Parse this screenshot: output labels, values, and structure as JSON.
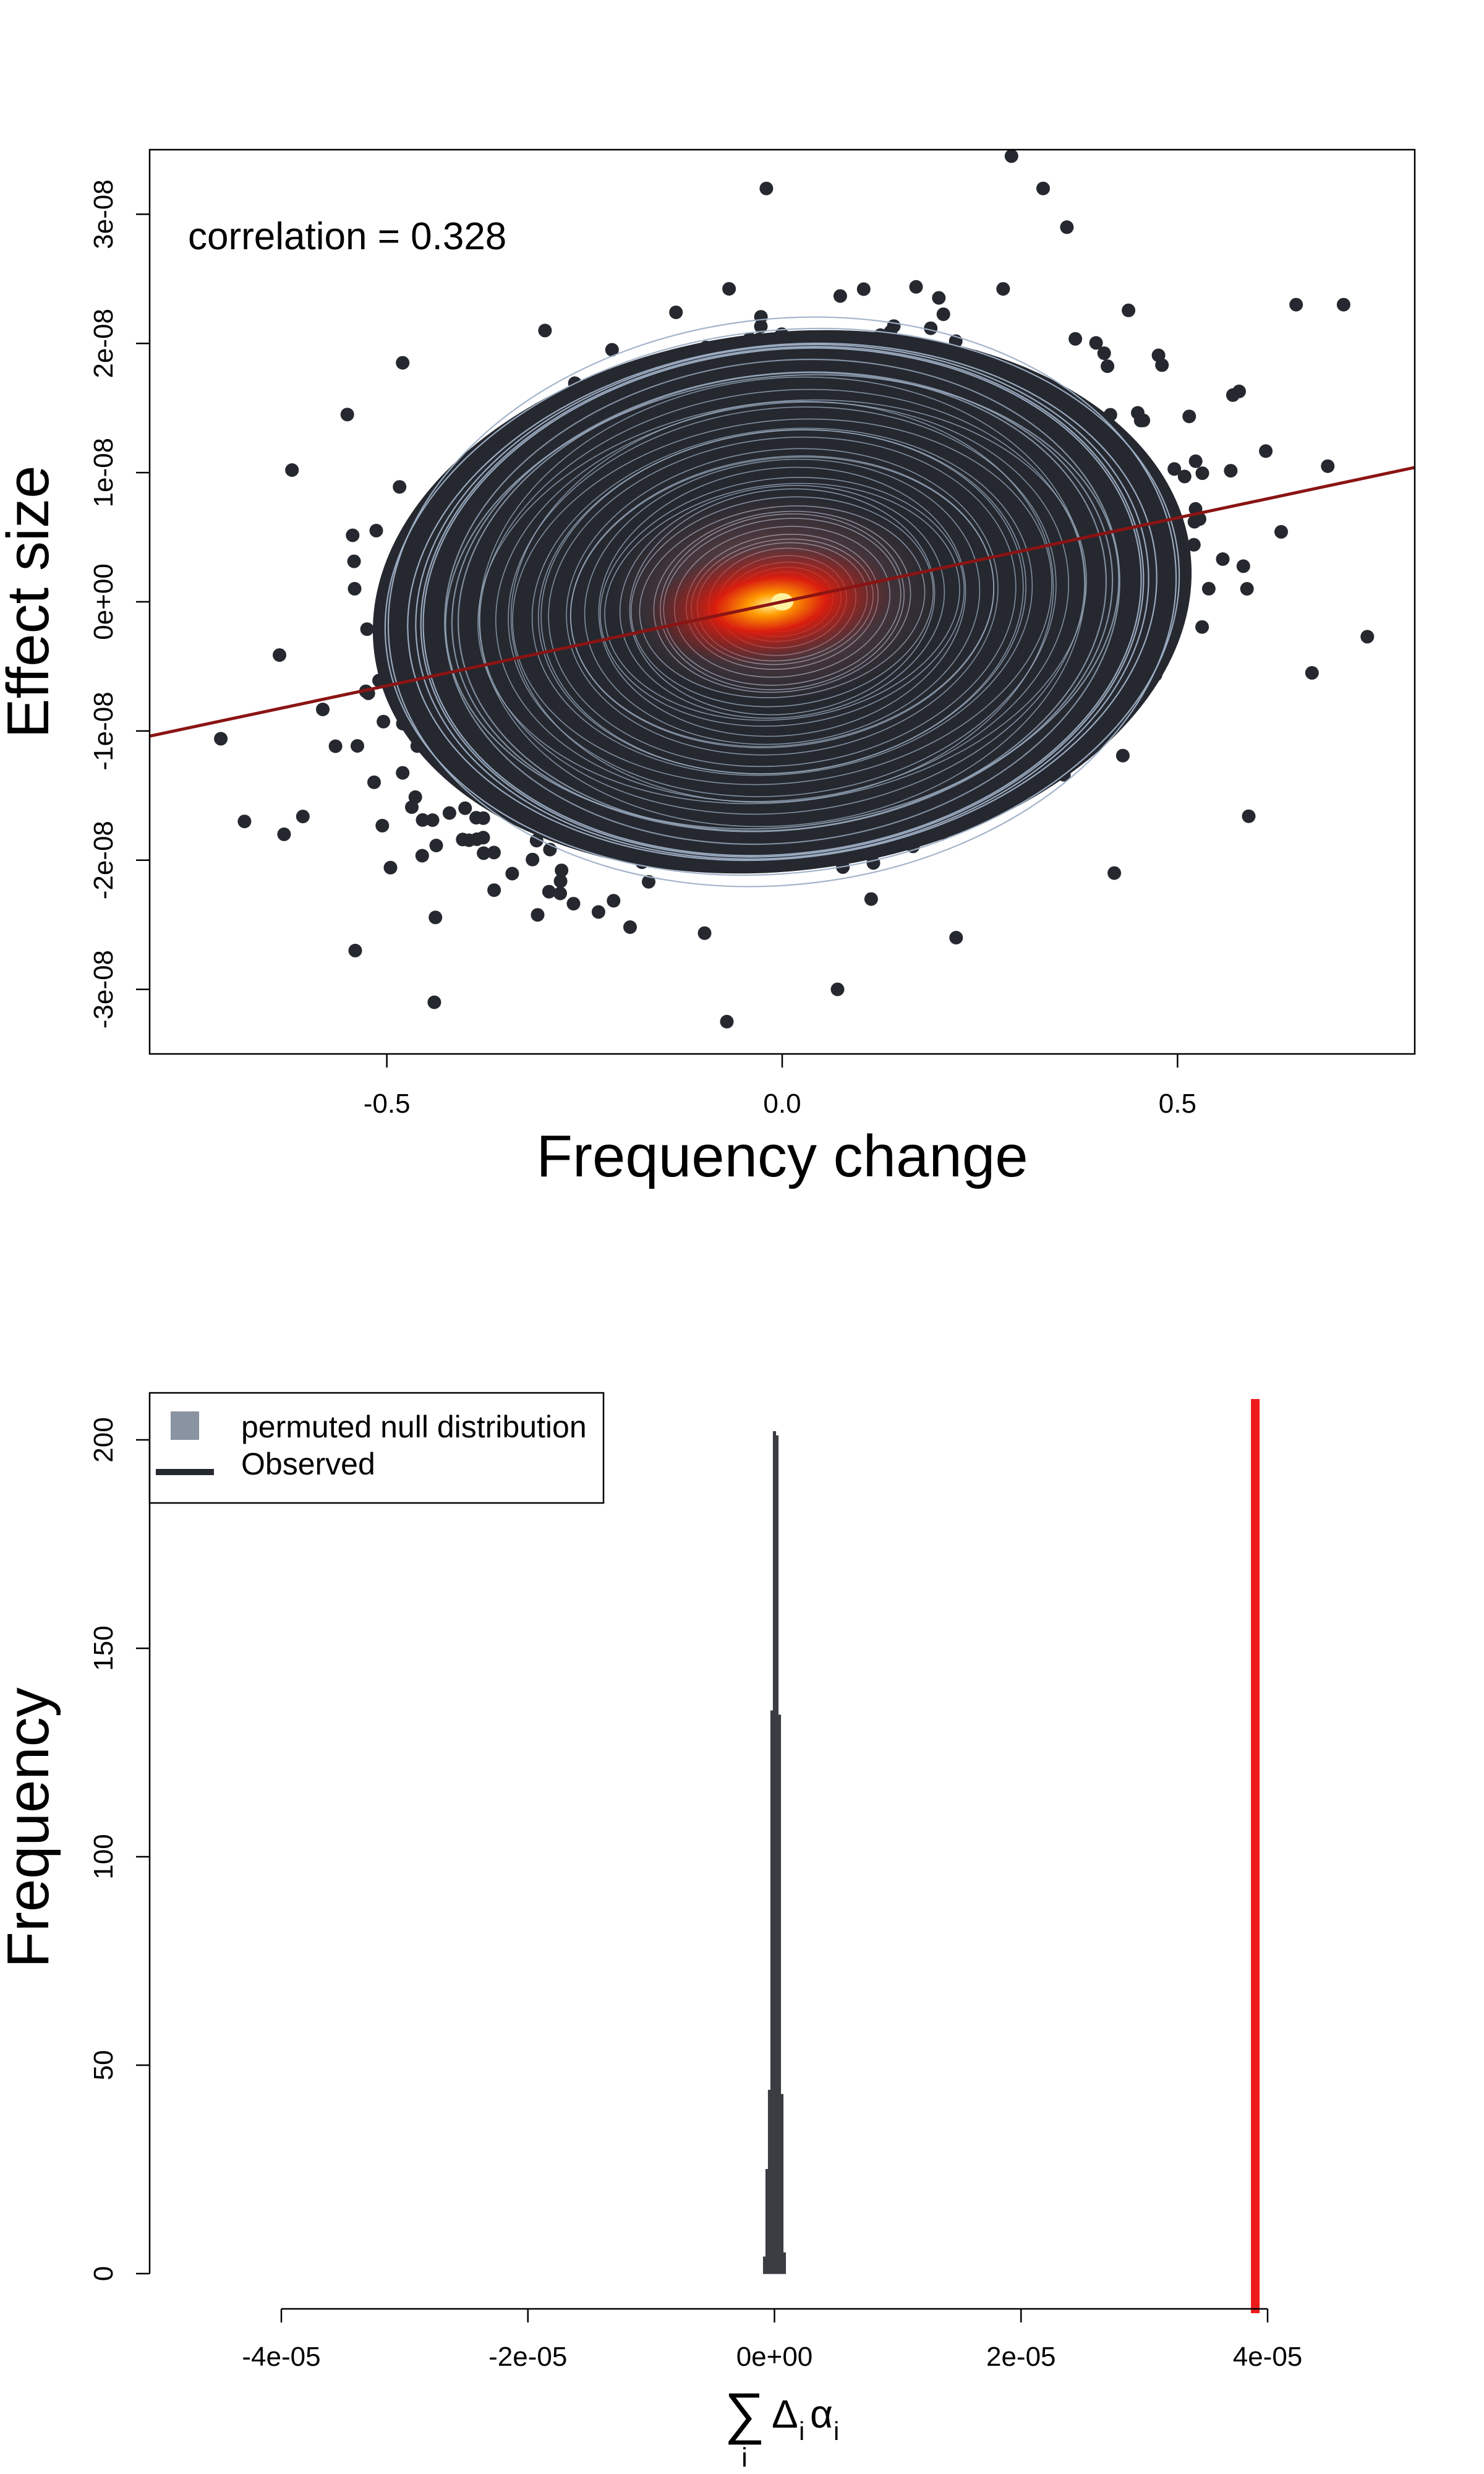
{
  "chart_data": [
    {
      "type": "scatter",
      "title": "",
      "xlabel": "Frequency change",
      "ylabel": "Effect size",
      "xlim": [
        -0.8,
        0.8
      ],
      "ylim": [
        -3.5e-08,
        3.5e-08
      ],
      "x_ticks": [
        {
          "value": -0.5,
          "label": "-0.5"
        },
        {
          "value": 0.0,
          "label": "0.0"
        },
        {
          "value": 0.5,
          "label": "0.5"
        }
      ],
      "y_ticks": [
        {
          "value": -3e-08,
          "label": "-3e-08"
        },
        {
          "value": -2e-08,
          "label": "-2e-08"
        },
        {
          "value": -1e-08,
          "label": "-1e-08"
        },
        {
          "value": 0,
          "label": "0e+00"
        },
        {
          "value": 1e-08,
          "label": "1e-08"
        },
        {
          "value": 2e-08,
          "label": "2e-08"
        },
        {
          "value": 3e-08,
          "label": "3e-08"
        }
      ],
      "annotation": "correlation = 0.328",
      "correlation": 0.328,
      "regression_line": {
        "slope": 1.3e-08,
        "intercept": 0
      },
      "point_spread": {
        "sd_x": 0.2,
        "sd_y": 8.5e-09,
        "rho": 0.328
      },
      "outlier_points": [
        [
          -0.71,
          -1.06e-08
        ],
        [
          -0.62,
          1.02e-08
        ],
        [
          -0.55,
          1.45e-08
        ],
        [
          0.74,
          -2.7e-09
        ],
        [
          0.71,
          2.3e-08
        ],
        [
          0.59,
          -1.66e-08
        ],
        [
          0.29,
          3.45e-08
        ],
        [
          -0.02,
          3.2e-08
        ],
        [
          0.33,
          3.2e-08
        ],
        [
          -0.07,
          -3.25e-08
        ],
        [
          -0.44,
          -3.1e-08
        ],
        [
          0.07,
          -3e-08
        ],
        [
          -0.54,
          -2.7e-08
        ],
        [
          0.22,
          -2.6e-08
        ],
        [
          0.42,
          -2.1e-08
        ],
        [
          0.65,
          2.3e-08
        ],
        [
          -0.48,
          1.85e-08
        ],
        [
          0.57,
          1.6e-08
        ],
        [
          -0.63,
          -1.8e-08
        ],
        [
          0.36,
          2.9e-08
        ],
        [
          -0.3,
          2.1e-08
        ],
        [
          0.69,
          1.05e-08
        ],
        [
          -0.68,
          -1.7e-08
        ],
        [
          0.67,
          -5.5e-09
        ]
      ],
      "colors": {
        "points": "#25282f",
        "contours": "#9fb0c6",
        "density_core": "#e01b0b",
        "density_peak": "#fff2a0",
        "fit_line": "#8b1414"
      }
    },
    {
      "type": "bar",
      "title": "",
      "xlabel": "∑ Δᵢαᵢ",
      "xlabel_parts": {
        "sum_symbol": "∑",
        "sum_index": "i",
        "delta": "Δ",
        "delta_index": "i",
        "alpha": "α",
        "alpha_index": "i"
      },
      "ylabel": "Frequency",
      "xlim": [
        -4e-05,
        4e-05
      ],
      "ylim": [
        0,
        210
      ],
      "x_ticks": [
        {
          "value": -4e-05,
          "label": "-4e-05"
        },
        {
          "value": -2e-05,
          "label": "-2e-05"
        },
        {
          "value": 0,
          "label": "0e+00"
        },
        {
          "value": 2e-05,
          "label": "2e-05"
        },
        {
          "value": 4e-05,
          "label": "4e-05"
        }
      ],
      "y_ticks": [
        {
          "value": 0,
          "label": "0"
        },
        {
          "value": 50,
          "label": "50"
        },
        {
          "value": 100,
          "label": "100"
        },
        {
          "value": 150,
          "label": "150"
        },
        {
          "value": 200,
          "label": "200"
        }
      ],
      "bin_width": 2e-07,
      "bins_start": [
        -9e-07,
        -7e-07,
        -5e-07,
        -3e-07,
        -1e-07,
        1e-07,
        3e-07,
        5e-07,
        7e-07
      ],
      "counts": [
        4,
        25,
        44,
        135,
        202,
        201,
        134,
        43,
        5
      ],
      "observed": 3.9e-05,
      "legend": {
        "position": "top-left",
        "entries": [
          "permuted null distribution",
          "Observed"
        ]
      },
      "colors": {
        "bars": "#3a3d42",
        "legend_square": "#8a93a2",
        "observed_line": "#ee1b1b",
        "legend_line": "#25282f"
      }
    }
  ]
}
